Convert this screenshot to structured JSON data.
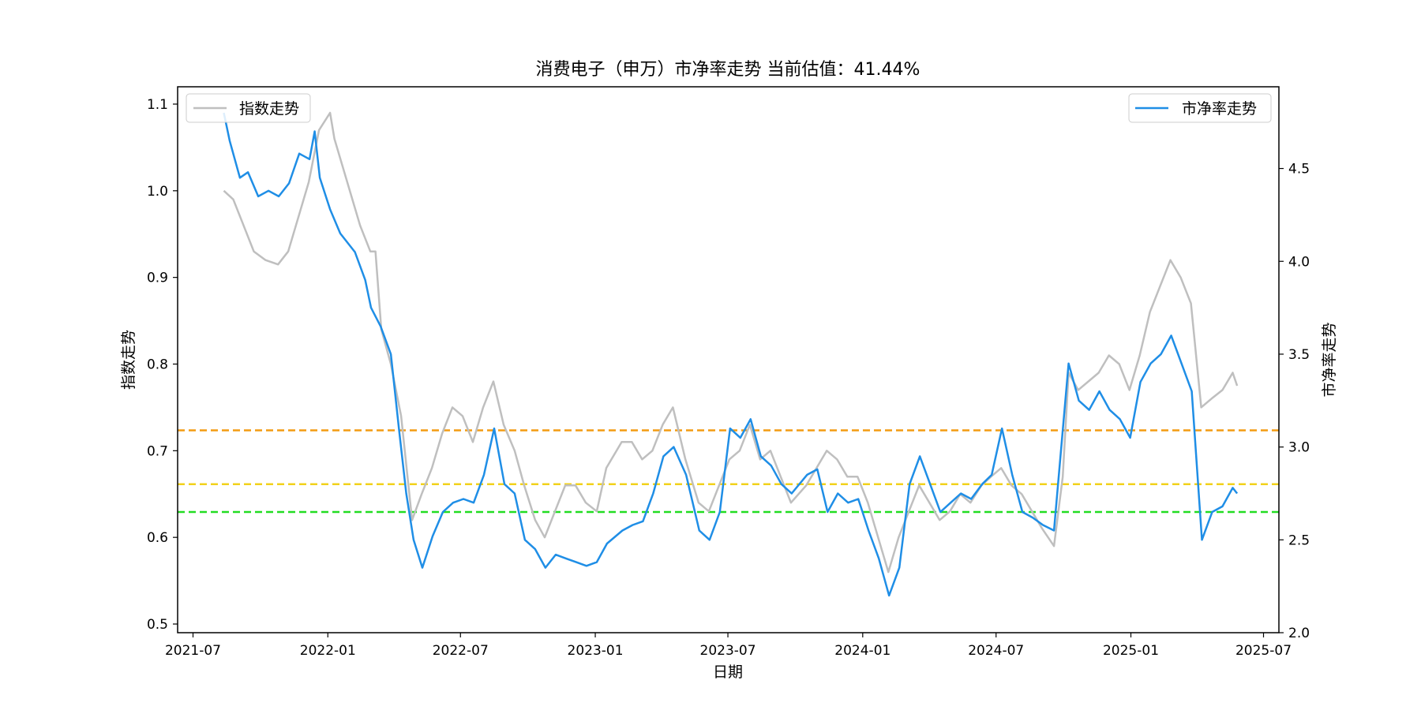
{
  "chart_data": {
    "type": "line",
    "title": "消费电子（申万）市净率走势 当前估值：41.44%",
    "xlabel": "日期",
    "ylabel_left": "指数走势",
    "ylabel_right": "市净率走势",
    "x_range": [
      "2021-06-10",
      "2025-07-22"
    ],
    "ylim_left": [
      0.49,
      1.12
    ],
    "ylim_right": [
      2.0,
      4.94
    ],
    "x_ticks": [
      "2021-07",
      "2022-01",
      "2022-07",
      "2023-01",
      "2023-07",
      "2024-01",
      "2024-07",
      "2025-01",
      "2025-07"
    ],
    "y_ticks_left": [
      0.5,
      0.6,
      0.7,
      0.8,
      0.9,
      1.0,
      1.1
    ],
    "y_ticks_right": [
      2.0,
      2.5,
      3.0,
      3.5,
      4.0,
      4.5
    ],
    "legend_left": "指数走势",
    "legend_right": "市净率走势",
    "reference_lines": [
      {
        "axis": "right",
        "value": 3.09,
        "color": "#f39c12"
      },
      {
        "axis": "right",
        "value": 2.8,
        "color": "#f2d21b"
      },
      {
        "axis": "right",
        "value": 2.65,
        "color": "#22dd22"
      }
    ],
    "series": [
      {
        "name": "指数走势",
        "axis": "left",
        "color": "#bfbfbf",
        "points": [
          [
            "2021-08-12",
            1.0
          ],
          [
            "2021-08-25",
            0.99
          ],
          [
            "2021-09-08",
            0.96
          ],
          [
            "2021-09-22",
            0.93
          ],
          [
            "2021-10-08",
            0.92
          ],
          [
            "2021-10-25",
            0.915
          ],
          [
            "2021-11-08",
            0.93
          ],
          [
            "2021-11-22",
            0.97
          ],
          [
            "2021-12-06",
            1.01
          ],
          [
            "2021-12-20",
            1.07
          ],
          [
            "2022-01-04",
            1.09
          ],
          [
            "2022-01-10",
            1.06
          ],
          [
            "2022-01-24",
            1.02
          ],
          [
            "2022-02-14",
            0.96
          ],
          [
            "2022-02-28",
            0.93
          ],
          [
            "2022-03-07",
            0.93
          ],
          [
            "2022-03-15",
            0.84
          ],
          [
            "2022-03-28",
            0.8
          ],
          [
            "2022-04-11",
            0.74
          ],
          [
            "2022-04-26",
            0.62
          ],
          [
            "2022-05-09",
            0.65
          ],
          [
            "2022-05-23",
            0.68
          ],
          [
            "2022-06-06",
            0.72
          ],
          [
            "2022-06-20",
            0.75
          ],
          [
            "2022-07-04",
            0.74
          ],
          [
            "2022-07-18",
            0.71
          ],
          [
            "2022-08-01",
            0.75
          ],
          [
            "2022-08-15",
            0.78
          ],
          [
            "2022-08-29",
            0.73
          ],
          [
            "2022-09-13",
            0.7
          ],
          [
            "2022-09-26",
            0.66
          ],
          [
            "2022-10-11",
            0.62
          ],
          [
            "2022-10-24",
            0.6
          ],
          [
            "2022-11-07",
            0.63
          ],
          [
            "2022-11-21",
            0.66
          ],
          [
            "2022-12-05",
            0.66
          ],
          [
            "2022-12-19",
            0.64
          ],
          [
            "2023-01-03",
            0.63
          ],
          [
            "2023-01-16",
            0.68
          ],
          [
            "2023-02-06",
            0.71
          ],
          [
            "2023-02-20",
            0.71
          ],
          [
            "2023-03-06",
            0.69
          ],
          [
            "2023-03-20",
            0.7
          ],
          [
            "2023-04-03",
            0.73
          ],
          [
            "2023-04-17",
            0.75
          ],
          [
            "2023-05-04",
            0.69
          ],
          [
            "2023-05-22",
            0.64
          ],
          [
            "2023-06-05",
            0.63
          ],
          [
            "2023-06-19",
            0.66
          ],
          [
            "2023-07-03",
            0.69
          ],
          [
            "2023-07-17",
            0.7
          ],
          [
            "2023-07-31",
            0.73
          ],
          [
            "2023-08-14",
            0.69
          ],
          [
            "2023-08-28",
            0.7
          ],
          [
            "2023-09-11",
            0.67
          ],
          [
            "2023-09-25",
            0.64
          ],
          [
            "2023-10-16",
            0.66
          ],
          [
            "2023-10-30",
            0.68
          ],
          [
            "2023-11-13",
            0.7
          ],
          [
            "2023-11-27",
            0.69
          ],
          [
            "2023-12-11",
            0.67
          ],
          [
            "2023-12-25",
            0.67
          ],
          [
            "2024-01-08",
            0.64
          ],
          [
            "2024-01-22",
            0.6
          ],
          [
            "2024-02-05",
            0.56
          ],
          [
            "2024-02-19",
            0.6
          ],
          [
            "2024-03-04",
            0.63
          ],
          [
            "2024-03-18",
            0.66
          ],
          [
            "2024-04-01",
            0.64
          ],
          [
            "2024-04-15",
            0.62
          ],
          [
            "2024-04-29",
            0.63
          ],
          [
            "2024-05-13",
            0.65
          ],
          [
            "2024-05-27",
            0.64
          ],
          [
            "2024-06-11",
            0.66
          ],
          [
            "2024-06-24",
            0.67
          ],
          [
            "2024-07-08",
            0.68
          ],
          [
            "2024-07-22",
            0.66
          ],
          [
            "2024-08-05",
            0.65
          ],
          [
            "2024-08-19",
            0.63
          ],
          [
            "2024-09-02",
            0.61
          ],
          [
            "2024-09-18",
            0.59
          ],
          [
            "2024-09-30",
            0.67
          ],
          [
            "2024-10-08",
            0.79
          ],
          [
            "2024-10-21",
            0.77
          ],
          [
            "2024-11-04",
            0.78
          ],
          [
            "2024-11-18",
            0.79
          ],
          [
            "2024-12-02",
            0.81
          ],
          [
            "2024-12-16",
            0.8
          ],
          [
            "2024-12-30",
            0.77
          ],
          [
            "2025-01-13",
            0.81
          ],
          [
            "2025-01-27",
            0.86
          ],
          [
            "2025-02-10",
            0.89
          ],
          [
            "2025-02-24",
            0.92
          ],
          [
            "2025-03-10",
            0.9
          ],
          [
            "2025-03-24",
            0.87
          ],
          [
            "2025-04-07",
            0.75
          ],
          [
            "2025-04-21",
            0.76
          ],
          [
            "2025-05-06",
            0.77
          ],
          [
            "2025-05-20",
            0.79
          ],
          [
            "2025-05-26",
            0.775
          ]
        ]
      },
      {
        "name": "市净率走势",
        "axis": "right",
        "color": "#1f8ee6",
        "points": [
          [
            "2021-08-12",
            4.8
          ],
          [
            "2021-08-20",
            4.65
          ],
          [
            "2021-08-27",
            4.55
          ],
          [
            "2021-09-03",
            4.45
          ],
          [
            "2021-09-14",
            4.48
          ],
          [
            "2021-09-28",
            4.35
          ],
          [
            "2021-10-12",
            4.38
          ],
          [
            "2021-10-26",
            4.35
          ],
          [
            "2021-11-09",
            4.42
          ],
          [
            "2021-11-23",
            4.58
          ],
          [
            "2021-12-07",
            4.55
          ],
          [
            "2021-12-14",
            4.7
          ],
          [
            "2021-12-21",
            4.45
          ],
          [
            "2022-01-04",
            4.28
          ],
          [
            "2022-01-18",
            4.15
          ],
          [
            "2022-02-07",
            4.05
          ],
          [
            "2022-02-21",
            3.9
          ],
          [
            "2022-03-01",
            3.75
          ],
          [
            "2022-03-14",
            3.65
          ],
          [
            "2022-03-28",
            3.5
          ],
          [
            "2022-04-08",
            3.1
          ],
          [
            "2022-04-18",
            2.75
          ],
          [
            "2022-04-28",
            2.5
          ],
          [
            "2022-05-10",
            2.35
          ],
          [
            "2022-05-24",
            2.52
          ],
          [
            "2022-06-07",
            2.65
          ],
          [
            "2022-06-21",
            2.7
          ],
          [
            "2022-07-05",
            2.72
          ],
          [
            "2022-07-19",
            2.7
          ],
          [
            "2022-08-02",
            2.85
          ],
          [
            "2022-08-16",
            3.1
          ],
          [
            "2022-08-30",
            2.8
          ],
          [
            "2022-09-13",
            2.75
          ],
          [
            "2022-09-27",
            2.5
          ],
          [
            "2022-10-11",
            2.45
          ],
          [
            "2022-10-25",
            2.35
          ],
          [
            "2022-11-08",
            2.42
          ],
          [
            "2022-11-22",
            2.4
          ],
          [
            "2022-12-06",
            2.38
          ],
          [
            "2022-12-20",
            2.36
          ],
          [
            "2023-01-03",
            2.38
          ],
          [
            "2023-01-17",
            2.48
          ],
          [
            "2023-02-07",
            2.55
          ],
          [
            "2023-02-21",
            2.58
          ],
          [
            "2023-03-07",
            2.6
          ],
          [
            "2023-03-21",
            2.75
          ],
          [
            "2023-04-04",
            2.95
          ],
          [
            "2023-04-18",
            3.0
          ],
          [
            "2023-05-05",
            2.85
          ],
          [
            "2023-05-23",
            2.55
          ],
          [
            "2023-06-06",
            2.5
          ],
          [
            "2023-06-20",
            2.65
          ],
          [
            "2023-07-04",
            3.1
          ],
          [
            "2023-07-18",
            3.05
          ],
          [
            "2023-08-01",
            3.15
          ],
          [
            "2023-08-15",
            2.95
          ],
          [
            "2023-08-29",
            2.9
          ],
          [
            "2023-09-12",
            2.8
          ],
          [
            "2023-09-26",
            2.75
          ],
          [
            "2023-10-17",
            2.85
          ],
          [
            "2023-10-31",
            2.88
          ],
          [
            "2023-11-14",
            2.65
          ],
          [
            "2023-11-28",
            2.75
          ],
          [
            "2023-12-12",
            2.7
          ],
          [
            "2023-12-26",
            2.72
          ],
          [
            "2024-01-09",
            2.55
          ],
          [
            "2024-01-23",
            2.4
          ],
          [
            "2024-02-06",
            2.2
          ],
          [
            "2024-02-20",
            2.35
          ],
          [
            "2024-03-05",
            2.8
          ],
          [
            "2024-03-19",
            2.95
          ],
          [
            "2024-04-02",
            2.8
          ],
          [
            "2024-04-16",
            2.65
          ],
          [
            "2024-04-30",
            2.7
          ],
          [
            "2024-05-14",
            2.75
          ],
          [
            "2024-05-28",
            2.72
          ],
          [
            "2024-06-12",
            2.8
          ],
          [
            "2024-06-25",
            2.85
          ],
          [
            "2024-07-09",
            3.1
          ],
          [
            "2024-07-23",
            2.85
          ],
          [
            "2024-08-06",
            2.65
          ],
          [
            "2024-08-20",
            2.62
          ],
          [
            "2024-09-03",
            2.58
          ],
          [
            "2024-09-18",
            2.55
          ],
          [
            "2024-10-08",
            3.45
          ],
          [
            "2024-10-22",
            3.25
          ],
          [
            "2024-11-05",
            3.2
          ],
          [
            "2024-11-19",
            3.3
          ],
          [
            "2024-12-03",
            3.2
          ],
          [
            "2024-12-17",
            3.15
          ],
          [
            "2024-12-31",
            3.05
          ],
          [
            "2025-01-14",
            3.35
          ],
          [
            "2025-01-28",
            3.45
          ],
          [
            "2025-02-11",
            3.5
          ],
          [
            "2025-02-25",
            3.6
          ],
          [
            "2025-03-11",
            3.45
          ],
          [
            "2025-03-25",
            3.3
          ],
          [
            "2025-04-08",
            2.5
          ],
          [
            "2025-04-22",
            2.65
          ],
          [
            "2025-05-06",
            2.68
          ],
          [
            "2025-05-20",
            2.78
          ],
          [
            "2025-05-26",
            2.75
          ]
        ]
      }
    ]
  }
}
